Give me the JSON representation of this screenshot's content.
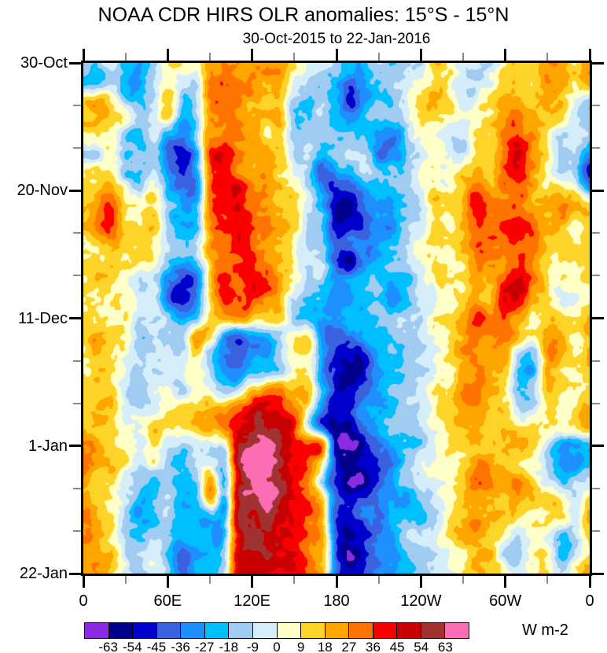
{
  "figure": {
    "title": "NOAA CDR HIRS OLR anomalies: 15°S - 15°N",
    "subtitle": "30-Oct-2015 to 22-Jan-2016",
    "units_label": "W m-2"
  },
  "chart_data": {
    "type": "heatmap",
    "title": "NOAA CDR HIRS OLR anomalies: 15°S - 15°N",
    "subtitle": "30-Oct-2015 to 22-Jan-2016",
    "legend_position": "bottom",
    "grid_lines": false,
    "x_axis": {
      "range_deg": [
        0,
        360
      ],
      "major_ticks": [
        {
          "label": "0",
          "lon": 0
        },
        {
          "label": "60E",
          "lon": 60
        },
        {
          "label": "120E",
          "lon": 120
        },
        {
          "label": "180",
          "lon": 180
        },
        {
          "label": "120W",
          "lon": 240
        },
        {
          "label": "60W",
          "lon": 300
        },
        {
          "label": "0",
          "lon": 360
        }
      ],
      "minor_lons": [
        30,
        90,
        150,
        210,
        270,
        330
      ]
    },
    "y_axis": {
      "range_days": [
        0,
        84
      ],
      "major_ticks": [
        {
          "label": "30-Oct",
          "day": 0
        },
        {
          "label": "20-Nov",
          "day": 21
        },
        {
          "label": "11-Dec",
          "day": 42
        },
        {
          "label": "1-Jan",
          "day": 63
        },
        {
          "label": "22-Jan",
          "day": 84
        }
      ],
      "minor_days": [
        7,
        14,
        28,
        35,
        49,
        56,
        70,
        77
      ]
    },
    "colorbar": {
      "units": "W m-2",
      "tick_labels": [
        "-63",
        "-54",
        "-45",
        "-36",
        "-27",
        "-18",
        "-9",
        "0",
        "9",
        "18",
        "27",
        "36",
        "45",
        "54",
        "63"
      ],
      "level_step": 9,
      "colors": [
        "#8B2BE2",
        "#00008C",
        "#0000CD",
        "#3A62DE",
        "#1E8FFF",
        "#00BFFF",
        "#A0CCF2",
        "#D6EEFA",
        "#FFFFC8",
        "#FFD428",
        "#FFA500",
        "#FF7400",
        "#FB0000",
        "#C80000",
        "#A03232",
        "#FB6EB4"
      ]
    },
    "grid": {
      "lon_start": 0,
      "lon_step": 10,
      "day_start": 0,
      "day_step": 3,
      "values": [
        [
          -12,
          -18,
          -8,
          -20,
          -25,
          -10,
          8,
          12,
          5,
          22,
          28,
          25,
          28,
          25,
          20,
          10,
          -5,
          -10,
          -5,
          -15,
          -18,
          -10,
          -12,
          -8,
          -5,
          10,
          5,
          -8,
          -10,
          -5,
          12,
          15,
          10,
          25,
          20,
          10,
          22
        ],
        [
          -15,
          -22,
          -10,
          -25,
          -28,
          -12,
          5,
          -8,
          -5,
          25,
          30,
          28,
          30,
          22,
          18,
          -8,
          -15,
          -12,
          -25,
          -40,
          -30,
          -15,
          -10,
          -5,
          0,
          12,
          8,
          -5,
          -8,
          0,
          15,
          18,
          12,
          28,
          22,
          8,
          25
        ],
        [
          15,
          20,
          10,
          -15,
          -20,
          -8,
          10,
          -15,
          -10,
          28,
          32,
          30,
          25,
          18,
          15,
          -12,
          -18,
          -10,
          -30,
          -50,
          -35,
          -20,
          -12,
          -8,
          5,
          15,
          10,
          -5,
          0,
          5,
          18,
          20,
          15,
          22,
          15,
          -5,
          -15
        ],
        [
          18,
          22,
          12,
          8,
          -10,
          -5,
          12,
          -20,
          -15,
          25,
          30,
          28,
          20,
          15,
          18,
          -15,
          -12,
          -8,
          -25,
          -35,
          -25,
          -15,
          -10,
          -5,
          8,
          10,
          5,
          0,
          5,
          8,
          20,
          25,
          18,
          15,
          10,
          -10,
          -18
        ],
        [
          5,
          8,
          5,
          -12,
          -18,
          -10,
          -25,
          -30,
          -20,
          22,
          28,
          25,
          22,
          12,
          15,
          -10,
          -8,
          -12,
          -15,
          -20,
          -15,
          -30,
          -35,
          -15,
          5,
          8,
          0,
          -5,
          8,
          10,
          25,
          35,
          25,
          12,
          -8,
          -12,
          -15
        ],
        [
          -8,
          -10,
          8,
          -18,
          -22,
          -12,
          -35,
          -45,
          -30,
          30,
          40,
          30,
          25,
          18,
          12,
          -8,
          -12,
          -25,
          -20,
          -15,
          -12,
          -35,
          -30,
          -12,
          0,
          5,
          -5,
          -8,
          15,
          12,
          30,
          45,
          30,
          10,
          -12,
          -15,
          -35
        ],
        [
          12,
          15,
          10,
          -12,
          -15,
          -8,
          -30,
          -40,
          -25,
          28,
          35,
          28,
          22,
          20,
          10,
          -5,
          -15,
          -40,
          -30,
          -20,
          -10,
          -20,
          -15,
          -8,
          5,
          8,
          0,
          12,
          18,
          15,
          35,
          45,
          28,
          8,
          -10,
          -12,
          -45
        ],
        [
          15,
          18,
          25,
          10,
          -8,
          5,
          -25,
          -35,
          -40,
          30,
          42,
          45,
          30,
          25,
          15,
          8,
          -10,
          -30,
          -45,
          -40,
          -30,
          -25,
          -20,
          -10,
          0,
          10,
          5,
          15,
          35,
          25,
          30,
          35,
          25,
          15,
          20,
          5,
          -20
        ],
        [
          18,
          25,
          40,
          15,
          8,
          5,
          -20,
          -30,
          -25,
          28,
          45,
          48,
          35,
          28,
          20,
          10,
          -8,
          -20,
          -55,
          -60,
          -40,
          -28,
          -22,
          -12,
          -5,
          12,
          8,
          20,
          40,
          30,
          32,
          38,
          28,
          20,
          28,
          12,
          12
        ],
        [
          15,
          28,
          35,
          12,
          5,
          8,
          -15,
          -25,
          -20,
          25,
          40,
          42,
          30,
          25,
          22,
          12,
          -5,
          -15,
          -50,
          -45,
          -38,
          -30,
          -25,
          -15,
          -8,
          8,
          5,
          15,
          32,
          28,
          35,
          40,
          30,
          22,
          25,
          10,
          15
        ],
        [
          12,
          20,
          25,
          10,
          8,
          5,
          -12,
          -20,
          -15,
          22,
          32,
          35,
          28,
          22,
          18,
          8,
          -8,
          -12,
          -40,
          -35,
          -30,
          -25,
          -18,
          -10,
          5,
          10,
          8,
          18,
          28,
          25,
          32,
          36,
          28,
          18,
          15,
          8,
          12
        ],
        [
          10,
          15,
          18,
          8,
          5,
          8,
          -18,
          -28,
          -22,
          18,
          30,
          32,
          30,
          25,
          15,
          10,
          -5,
          -10,
          -45,
          -55,
          -35,
          -20,
          -15,
          -12,
          -5,
          8,
          10,
          15,
          25,
          22,
          30,
          35,
          25,
          15,
          12,
          5,
          10
        ],
        [
          8,
          12,
          10,
          5,
          -8,
          -5,
          -30,
          -42,
          -35,
          15,
          38,
          30,
          38,
          35,
          18,
          5,
          -12,
          -20,
          -35,
          -30,
          -25,
          -18,
          -25,
          -20,
          -8,
          5,
          8,
          12,
          22,
          20,
          35,
          45,
          30,
          12,
          8,
          5,
          12
        ],
        [
          10,
          8,
          8,
          5,
          -12,
          -8,
          -35,
          -45,
          -30,
          12,
          40,
          35,
          40,
          30,
          20,
          -8,
          -20,
          -28,
          -30,
          -25,
          -20,
          -15,
          -28,
          -22,
          -10,
          0,
          5,
          10,
          25,
          22,
          38,
          42,
          25,
          10,
          -8,
          5,
          10
        ],
        [
          15,
          12,
          10,
          8,
          -8,
          -5,
          -15,
          -30,
          -20,
          8,
          20,
          25,
          15,
          10,
          12,
          -10,
          -18,
          -25,
          -28,
          -22,
          -25,
          -18,
          -15,
          -12,
          -8,
          5,
          8,
          15,
          38,
          25,
          28,
          20,
          12,
          15,
          12,
          8,
          20
        ],
        [
          18,
          25,
          12,
          5,
          -18,
          -8,
          -10,
          -12,
          22,
          10,
          -30,
          -38,
          -25,
          -20,
          -10,
          8,
          10,
          -30,
          -40,
          -35,
          -30,
          -28,
          -20,
          -12,
          -8,
          5,
          10,
          20,
          30,
          28,
          25,
          15,
          5,
          18,
          15,
          10,
          22
        ],
        [
          15,
          18,
          10,
          0,
          -12,
          -5,
          -8,
          -10,
          10,
          -15,
          -35,
          -40,
          -30,
          -25,
          -12,
          5,
          8,
          -28,
          -45,
          -55,
          -50,
          -30,
          -25,
          -15,
          -10,
          0,
          8,
          22,
          28,
          25,
          18,
          -10,
          -15,
          25,
          18,
          12,
          18
        ],
        [
          12,
          15,
          8,
          -5,
          -10,
          -8,
          -5,
          -8,
          5,
          -12,
          -28,
          -32,
          -20,
          -15,
          -8,
          10,
          12,
          -25,
          -50,
          -60,
          -55,
          -35,
          -28,
          -18,
          -12,
          -5,
          5,
          25,
          30,
          22,
          12,
          -20,
          -18,
          22,
          15,
          8,
          15
        ],
        [
          15,
          12,
          10,
          -8,
          -12,
          -5,
          0,
          -5,
          8,
          5,
          -15,
          -10,
          15,
          25,
          30,
          22,
          18,
          -20,
          -45,
          -50,
          -40,
          -30,
          -22,
          -12,
          -8,
          8,
          10,
          28,
          32,
          20,
          10,
          -18,
          -12,
          18,
          12,
          10,
          12
        ],
        [
          20,
          18,
          12,
          -5,
          -8,
          0,
          5,
          8,
          10,
          15,
          22,
          30,
          42,
          45,
          38,
          30,
          8,
          -30,
          -50,
          -45,
          -35,
          -28,
          -25,
          -15,
          -10,
          5,
          12,
          22,
          28,
          18,
          15,
          -10,
          -8,
          15,
          10,
          8,
          15
        ],
        [
          22,
          20,
          10,
          0,
          -5,
          12,
          10,
          5,
          12,
          18,
          28,
          40,
          50,
          52,
          45,
          42,
          -8,
          -40,
          -60,
          -55,
          -40,
          -30,
          -20,
          -12,
          -8,
          0,
          10,
          18,
          22,
          15,
          12,
          8,
          10,
          12,
          8,
          10,
          18
        ],
        [
          35,
          25,
          20,
          8,
          -5,
          5,
          -10,
          -15,
          -10,
          -8,
          0,
          50,
          60,
          68,
          55,
          45,
          40,
          25,
          -55,
          -65,
          -55,
          -40,
          -30,
          -20,
          -12,
          -5,
          5,
          12,
          18,
          12,
          10,
          15,
          8,
          -10,
          -25,
          -20,
          -20
        ],
        [
          35,
          22,
          22,
          5,
          -10,
          5,
          -15,
          -15,
          -10,
          -5,
          -10,
          50,
          65,
          68,
          55,
          45,
          38,
          5,
          -45,
          -55,
          -50,
          -45,
          -30,
          -15,
          -5,
          0,
          8,
          15,
          28,
          20,
          12,
          10,
          5,
          -15,
          -28,
          -30,
          -22
        ],
        [
          25,
          15,
          10,
          -8,
          -15,
          -15,
          -12,
          -25,
          -20,
          22,
          -18,
          45,
          62,
          60,
          55,
          40,
          30,
          -10,
          -50,
          -62,
          -60,
          -40,
          -28,
          -18,
          -10,
          -5,
          5,
          20,
          30,
          25,
          15,
          25,
          10,
          -10,
          -20,
          -15,
          -8
        ],
        [
          25,
          15,
          8,
          -10,
          -25,
          -15,
          -10,
          -28,
          -22,
          20,
          -25,
          52,
          60,
          68,
          52,
          40,
          28,
          10,
          -45,
          -50,
          -40,
          -32,
          -25,
          -28,
          -15,
          -8,
          0,
          12,
          20,
          15,
          10,
          20,
          15,
          10,
          5,
          -10,
          12
        ],
        [
          28,
          18,
          10,
          -12,
          -25,
          -18,
          -12,
          -28,
          -25,
          -20,
          -22,
          55,
          58,
          58,
          48,
          40,
          28,
          12,
          -50,
          -45,
          -38,
          -35,
          -20,
          -15,
          -18,
          -10,
          5,
          15,
          28,
          20,
          12,
          8,
          10,
          12,
          8,
          -8,
          15
        ],
        [
          30,
          25,
          12,
          -8,
          -15,
          -12,
          -18,
          -30,
          -25,
          -25,
          -20,
          48,
          58,
          55,
          48,
          40,
          28,
          15,
          -45,
          -50,
          -42,
          -30,
          -22,
          -15,
          -10,
          -5,
          8,
          18,
          25,
          18,
          8,
          -8,
          8,
          10,
          -15,
          -12,
          8
        ],
        [
          28,
          22,
          15,
          -5,
          -12,
          -8,
          -20,
          -38,
          -32,
          -28,
          -18,
          45,
          55,
          58,
          45,
          40,
          28,
          15,
          -40,
          -58,
          -45,
          -32,
          -30,
          -20,
          -12,
          -8,
          0,
          10,
          20,
          15,
          -8,
          -12,
          5,
          8,
          -18,
          -8,
          10
        ],
        [
          30,
          25,
          15,
          0,
          -10,
          -5,
          -15,
          -35,
          -30,
          -25,
          -15,
          45,
          52,
          50,
          45,
          40,
          28,
          15,
          -35,
          -50,
          -45,
          -30,
          -25,
          -18,
          -12,
          -8,
          0,
          10,
          18,
          15,
          10,
          -5,
          5,
          8,
          -10,
          5,
          18
        ]
      ]
    },
    "texture": {
      "seed": 7,
      "octaves": [
        {
          "scale": 30,
          "amp": 6,
          "k": 1
        },
        {
          "scale": 13,
          "amp": 5,
          "k": 2
        },
        {
          "scale": 6,
          "amp": 3,
          "k": 3
        }
      ]
    }
  }
}
